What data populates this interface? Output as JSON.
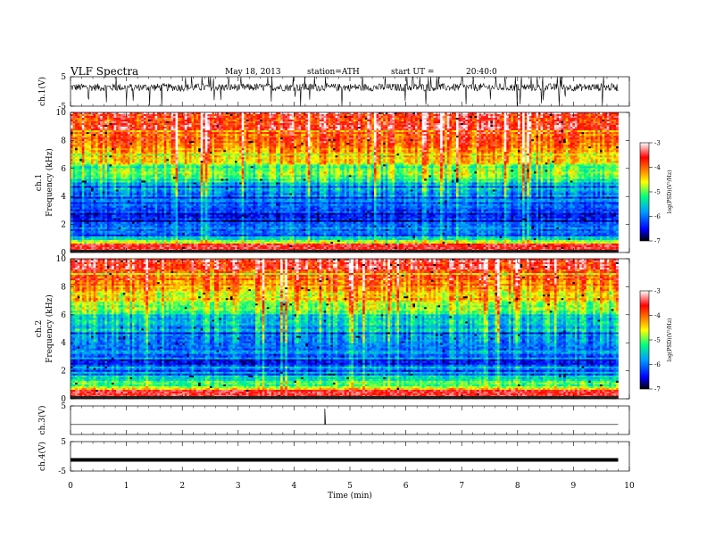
{
  "header": {
    "title": "VLF Spectra",
    "date": "May 18, 2013",
    "station": "station=ATH",
    "start_label": "start UT =",
    "start_time": "20:40:0"
  },
  "chart_data": [
    {
      "type": "line",
      "panel": "ch1-waveform",
      "ylabel": "ch.1(V)",
      "ylim": [
        -5,
        5
      ],
      "yticks": [
        "5",
        "-5"
      ],
      "xlim": [
        0,
        10
      ],
      "data_extent_min": 9.8,
      "trace": "dense noisy waveform around ~1.5 V with spikes"
    },
    {
      "type": "heatmap",
      "panel": "ch1-spectrogram",
      "ylabel_top": "ch.1",
      "ylabel": "Frequency (kHz)",
      "ylim": [
        0,
        10
      ],
      "yticks": [
        "0",
        "2",
        "4",
        "6",
        "8",
        "10"
      ],
      "xlim": [
        0,
        10
      ],
      "colorbar": {
        "label": "log(PSD)(V²/Hz)",
        "range": [
          -7,
          -3
        ],
        "ticks": [
          "-3",
          "-4",
          "-5",
          "-6",
          "-7"
        ],
        "colors": [
          "#000000",
          "#0000ff",
          "#00a0ff",
          "#00ff80",
          "#ffff00",
          "#ff8000",
          "#ff0000",
          "#ffffff"
        ]
      },
      "frequency_profile_kHz": [
        {
          "f": 0.3,
          "level": -3.2
        },
        {
          "f": 1.0,
          "level": -5.6
        },
        {
          "f": 2.5,
          "level": -6.4
        },
        {
          "f": 4.0,
          "level": -5.9
        },
        {
          "f": 5.5,
          "level": -5.1
        },
        {
          "f": 7.0,
          "level": -4.4
        },
        {
          "f": 9.0,
          "level": -3.7
        },
        {
          "f": 10.0,
          "level": -3.5
        }
      ]
    },
    {
      "type": "heatmap",
      "panel": "ch2-spectrogram",
      "ylabel_top": "ch.2",
      "ylabel": "Frequency (kHz)",
      "ylim": [
        0,
        10
      ],
      "yticks": [
        "0",
        "2",
        "4",
        "6",
        "8",
        "10"
      ],
      "xlim": [
        0,
        10
      ],
      "colorbar": {
        "label": "log(PSD)(V²/Hz)",
        "range": [
          -7,
          -3
        ],
        "ticks": [
          "-3",
          "-4",
          "-5",
          "-6",
          "-7"
        ],
        "colors": [
          "#000000",
          "#0000ff",
          "#00a0ff",
          "#00ff80",
          "#ffff00",
          "#ff8000",
          "#ff0000",
          "#ffffff"
        ]
      },
      "frequency_profile_kHz": [
        {
          "f": 0.3,
          "level": -3.2
        },
        {
          "f": 1.0,
          "level": -5.2
        },
        {
          "f": 2.5,
          "level": -5.9
        },
        {
          "f": 4.0,
          "level": -6.0
        },
        {
          "f": 5.5,
          "level": -5.4
        },
        {
          "f": 7.0,
          "level": -4.5
        },
        {
          "f": 9.0,
          "level": -3.8
        },
        {
          "f": 10.0,
          "level": -3.5
        }
      ]
    },
    {
      "type": "line",
      "panel": "ch3-waveform",
      "ylabel": "ch.3(V)",
      "ylim": [
        -5,
        5
      ],
      "yticks": [
        "5"
      ],
      "xlim": [
        0,
        10
      ],
      "baseline": -1.5,
      "spike_at_min": 4.55
    },
    {
      "type": "line",
      "panel": "ch4-waveform",
      "ylabel": "ch.4(V)",
      "ylim": [
        -5,
        5
      ],
      "yticks": [
        "5",
        "-5"
      ],
      "xlim": [
        0,
        10
      ],
      "baseline": -1.2
    }
  ],
  "xaxis": {
    "label": "Time (min)",
    "ticks": [
      "0",
      "1",
      "2",
      "3",
      "4",
      "5",
      "6",
      "7",
      "8",
      "9",
      "10"
    ]
  }
}
